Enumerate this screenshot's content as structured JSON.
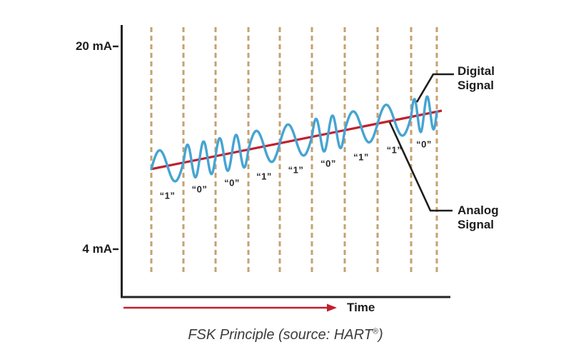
{
  "figure": {
    "caption_pre": "FSK Principle (source: HART",
    "caption_reg": "®",
    "caption_post": ")",
    "x_axis_label": "Time",
    "y_axis": {
      "top_label": "20 mA",
      "bottom_label": "4 mA"
    },
    "callouts": {
      "digital": "Digital Signal",
      "analog": "Analog Signal"
    }
  },
  "chart_data": {
    "type": "line",
    "title": "FSK Principle (source: HART®)",
    "xlabel": "Time",
    "ylabel": "",
    "y_ticks": [
      "20 mA",
      "4 mA"
    ],
    "y_range_mA": [
      4,
      20
    ],
    "grid": "vertical dashed lines marking bit intervals",
    "bit_sequence": [
      "1",
      "0",
      "0",
      "1",
      "1",
      "0",
      "1",
      "1",
      "0"
    ],
    "series": [
      {
        "name": "Digital Signal",
        "shape": "FSK sine wave superimposed on analog line; bit \"1\" = 1 cycle per interval (low frequency), bit \"0\" = 2 cycles per interval (high frequency)",
        "amplitude_mA": 1.4,
        "color": "#46a4d2"
      },
      {
        "name": "Analog Signal",
        "shape": "straight rising line",
        "start_mA": 10.3,
        "end_mA": 14.9,
        "color": "#c1202e"
      }
    ],
    "legend_position": "right-side callout labels"
  },
  "colors": {
    "digital_wave": "#46a4d2",
    "analog_line": "#c1202e",
    "grid_dash": "#c6a171",
    "axis_and_text": "#1d1d1d",
    "caption_text": "#3c3c3c",
    "background": "#ffffff"
  }
}
